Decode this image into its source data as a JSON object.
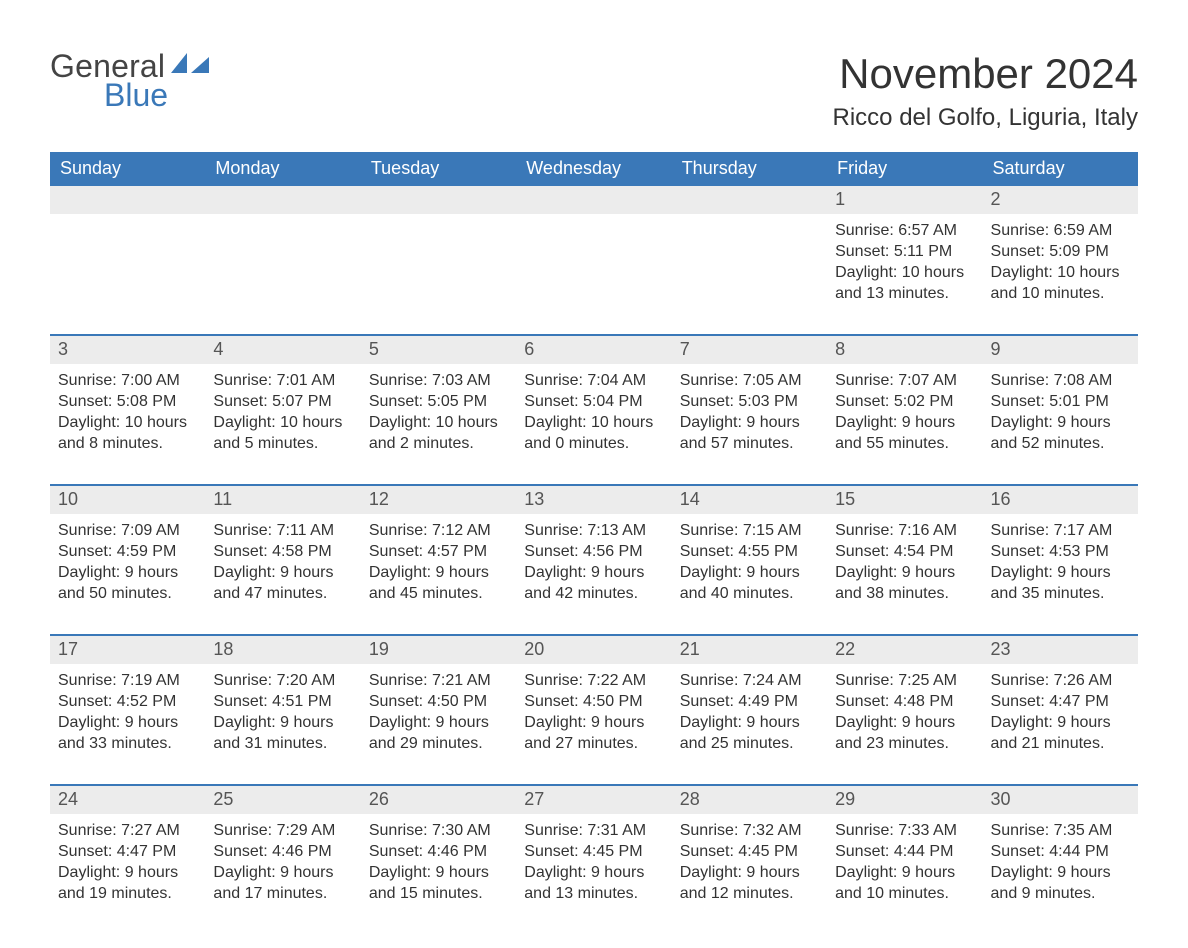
{
  "colors": {
    "brand_blue": "#3a78b8",
    "text": "#333333",
    "header_bg": "#3a78b8",
    "header_text": "#ffffff",
    "daynum_bg": "#ececec",
    "daynum_text": "#555555",
    "page_bg": "#ffffff"
  },
  "typography": {
    "base_family": "Arial, Helvetica, sans-serif",
    "month_title_size_pt": 32,
    "location_size_pt": 18,
    "weekday_size_pt": 14,
    "daynum_size_pt": 14,
    "body_size_pt": 12
  },
  "logo": {
    "text_general": "General",
    "text_blue": "Blue"
  },
  "header": {
    "month_title": "November 2024",
    "location": "Ricco del Golfo, Liguria, Italy"
  },
  "calendar": {
    "type": "table",
    "week_start": "Sunday",
    "weekdays": [
      "Sunday",
      "Monday",
      "Tuesday",
      "Wednesday",
      "Thursday",
      "Friday",
      "Saturday"
    ],
    "first_day_weekday_index": 5,
    "days_in_month": 30,
    "labels": {
      "sunrise": "Sunrise:",
      "sunset": "Sunset:",
      "daylight": "Daylight:"
    },
    "days": [
      {
        "num": "1",
        "sunrise": "6:57 AM",
        "sunset": "5:11 PM",
        "daylight": "10 hours and 13 minutes."
      },
      {
        "num": "2",
        "sunrise": "6:59 AM",
        "sunset": "5:09 PM",
        "daylight": "10 hours and 10 minutes."
      },
      {
        "num": "3",
        "sunrise": "7:00 AM",
        "sunset": "5:08 PM",
        "daylight": "10 hours and 8 minutes."
      },
      {
        "num": "4",
        "sunrise": "7:01 AM",
        "sunset": "5:07 PM",
        "daylight": "10 hours and 5 minutes."
      },
      {
        "num": "5",
        "sunrise": "7:03 AM",
        "sunset": "5:05 PM",
        "daylight": "10 hours and 2 minutes."
      },
      {
        "num": "6",
        "sunrise": "7:04 AM",
        "sunset": "5:04 PM",
        "daylight": "10 hours and 0 minutes."
      },
      {
        "num": "7",
        "sunrise": "7:05 AM",
        "sunset": "5:03 PM",
        "daylight": "9 hours and 57 minutes."
      },
      {
        "num": "8",
        "sunrise": "7:07 AM",
        "sunset": "5:02 PM",
        "daylight": "9 hours and 55 minutes."
      },
      {
        "num": "9",
        "sunrise": "7:08 AM",
        "sunset": "5:01 PM",
        "daylight": "9 hours and 52 minutes."
      },
      {
        "num": "10",
        "sunrise": "7:09 AM",
        "sunset": "4:59 PM",
        "daylight": "9 hours and 50 minutes."
      },
      {
        "num": "11",
        "sunrise": "7:11 AM",
        "sunset": "4:58 PM",
        "daylight": "9 hours and 47 minutes."
      },
      {
        "num": "12",
        "sunrise": "7:12 AM",
        "sunset": "4:57 PM",
        "daylight": "9 hours and 45 minutes."
      },
      {
        "num": "13",
        "sunrise": "7:13 AM",
        "sunset": "4:56 PM",
        "daylight": "9 hours and 42 minutes."
      },
      {
        "num": "14",
        "sunrise": "7:15 AM",
        "sunset": "4:55 PM",
        "daylight": "9 hours and 40 minutes."
      },
      {
        "num": "15",
        "sunrise": "7:16 AM",
        "sunset": "4:54 PM",
        "daylight": "9 hours and 38 minutes."
      },
      {
        "num": "16",
        "sunrise": "7:17 AM",
        "sunset": "4:53 PM",
        "daylight": "9 hours and 35 minutes."
      },
      {
        "num": "17",
        "sunrise": "7:19 AM",
        "sunset": "4:52 PM",
        "daylight": "9 hours and 33 minutes."
      },
      {
        "num": "18",
        "sunrise": "7:20 AM",
        "sunset": "4:51 PM",
        "daylight": "9 hours and 31 minutes."
      },
      {
        "num": "19",
        "sunrise": "7:21 AM",
        "sunset": "4:50 PM",
        "daylight": "9 hours and 29 minutes."
      },
      {
        "num": "20",
        "sunrise": "7:22 AM",
        "sunset": "4:50 PM",
        "daylight": "9 hours and 27 minutes."
      },
      {
        "num": "21",
        "sunrise": "7:24 AM",
        "sunset": "4:49 PM",
        "daylight": "9 hours and 25 minutes."
      },
      {
        "num": "22",
        "sunrise": "7:25 AM",
        "sunset": "4:48 PM",
        "daylight": "9 hours and 23 minutes."
      },
      {
        "num": "23",
        "sunrise": "7:26 AM",
        "sunset": "4:47 PM",
        "daylight": "9 hours and 21 minutes."
      },
      {
        "num": "24",
        "sunrise": "7:27 AM",
        "sunset": "4:47 PM",
        "daylight": "9 hours and 19 minutes."
      },
      {
        "num": "25",
        "sunrise": "7:29 AM",
        "sunset": "4:46 PM",
        "daylight": "9 hours and 17 minutes."
      },
      {
        "num": "26",
        "sunrise": "7:30 AM",
        "sunset": "4:46 PM",
        "daylight": "9 hours and 15 minutes."
      },
      {
        "num": "27",
        "sunrise": "7:31 AM",
        "sunset": "4:45 PM",
        "daylight": "9 hours and 13 minutes."
      },
      {
        "num": "28",
        "sunrise": "7:32 AM",
        "sunset": "4:45 PM",
        "daylight": "9 hours and 12 minutes."
      },
      {
        "num": "29",
        "sunrise": "7:33 AM",
        "sunset": "4:44 PM",
        "daylight": "9 hours and 10 minutes."
      },
      {
        "num": "30",
        "sunrise": "7:35 AM",
        "sunset": "4:44 PM",
        "daylight": "9 hours and 9 minutes."
      }
    ]
  }
}
